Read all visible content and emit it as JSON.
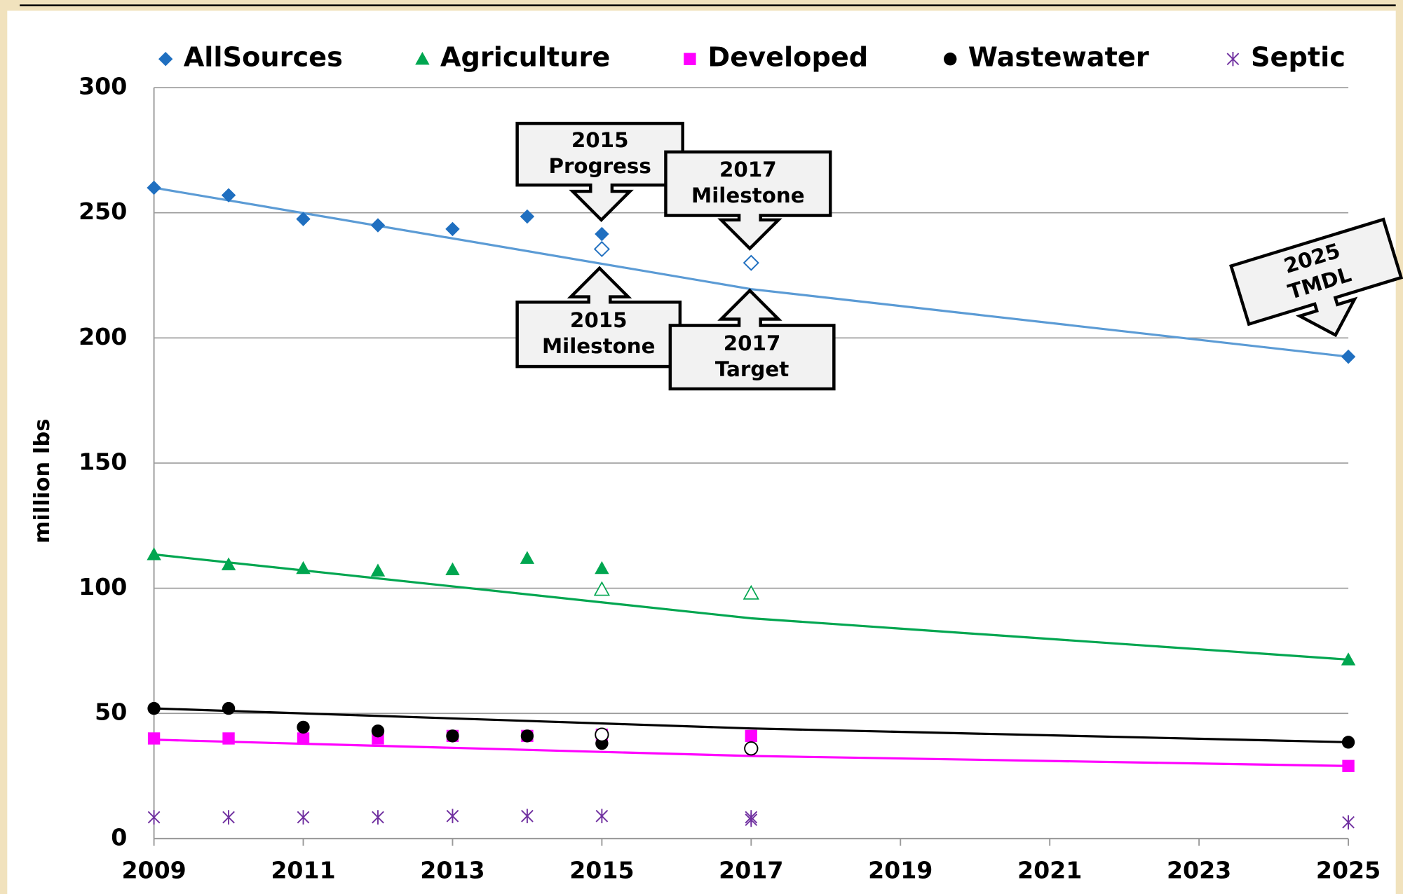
{
  "chart_data": {
    "type": "scatter",
    "ylabel": "million lbs",
    "x": [
      2009,
      2010,
      2011,
      2012,
      2013,
      2014,
      2015,
      2017,
      2025
    ],
    "trend_x": [
      2009,
      2017,
      2025
    ],
    "xlim": [
      2009,
      2025
    ],
    "xticks": [
      2009,
      2011,
      2013,
      2015,
      2017,
      2019,
      2021,
      2023,
      2025
    ],
    "ylim": [
      0,
      300
    ],
    "yticks": [
      0,
      50,
      100,
      150,
      200,
      250,
      300
    ],
    "grid": true,
    "legend": "top",
    "series": [
      {
        "name": "AllSources",
        "color": "#1f6fc0",
        "trend_color": "#5b9bd5",
        "marker": "diamond",
        "values": [
          260,
          257,
          247.5,
          245,
          243.5,
          248.5,
          241.5,
          null,
          192.5
        ],
        "open_values": [
          null,
          null,
          null,
          null,
          null,
          null,
          235.5,
          230,
          null
        ],
        "trend": [
          260,
          219.5,
          192.5
        ]
      },
      {
        "name": "Agriculture",
        "color": "#00a650",
        "trend_color": "#00a650",
        "marker": "triangle",
        "values": [
          113.5,
          109.5,
          108,
          107,
          107.5,
          112,
          108,
          null,
          71.5
        ],
        "open_values": [
          null,
          null,
          null,
          null,
          null,
          null,
          99.5,
          98,
          null
        ],
        "trend": [
          113.5,
          88,
          71.5
        ]
      },
      {
        "name": "Developed",
        "color": "#ff00ff",
        "trend_color": "#ff00ff",
        "marker": "square",
        "values": [
          40,
          40,
          40,
          40,
          41,
          41,
          41.5,
          41,
          29
        ],
        "open_values": [
          null,
          null,
          null,
          null,
          null,
          null,
          null,
          null,
          null
        ],
        "trend": [
          39.5,
          33,
          29
        ]
      },
      {
        "name": "Wastewater",
        "color": "#000000",
        "trend_color": "#000000",
        "marker": "circle",
        "values": [
          52,
          52,
          44.5,
          43,
          41,
          41,
          38,
          null,
          38.5
        ],
        "open_values": [
          null,
          null,
          null,
          null,
          null,
          null,
          41.5,
          36,
          null
        ],
        "trend": [
          52,
          44,
          38.5
        ]
      },
      {
        "name": "Septic",
        "color": "#7030a0",
        "marker": "asterisk",
        "values": [
          8.5,
          8.5,
          8.5,
          8.5,
          9,
          9,
          9,
          7.5,
          6.5
        ],
        "open_values": [
          null,
          null,
          null,
          null,
          null,
          null,
          null,
          8.5,
          null
        ]
      }
    ],
    "annotations": [
      {
        "lines": [
          "2015",
          "Progress"
        ]
      },
      {
        "lines": [
          "2017",
          "Milestone"
        ]
      },
      {
        "lines": [
          "2015",
          "Milestone"
        ]
      },
      {
        "lines": [
          "2017",
          "Target"
        ]
      },
      {
        "lines": [
          "2025",
          "TMDL"
        ]
      }
    ]
  }
}
